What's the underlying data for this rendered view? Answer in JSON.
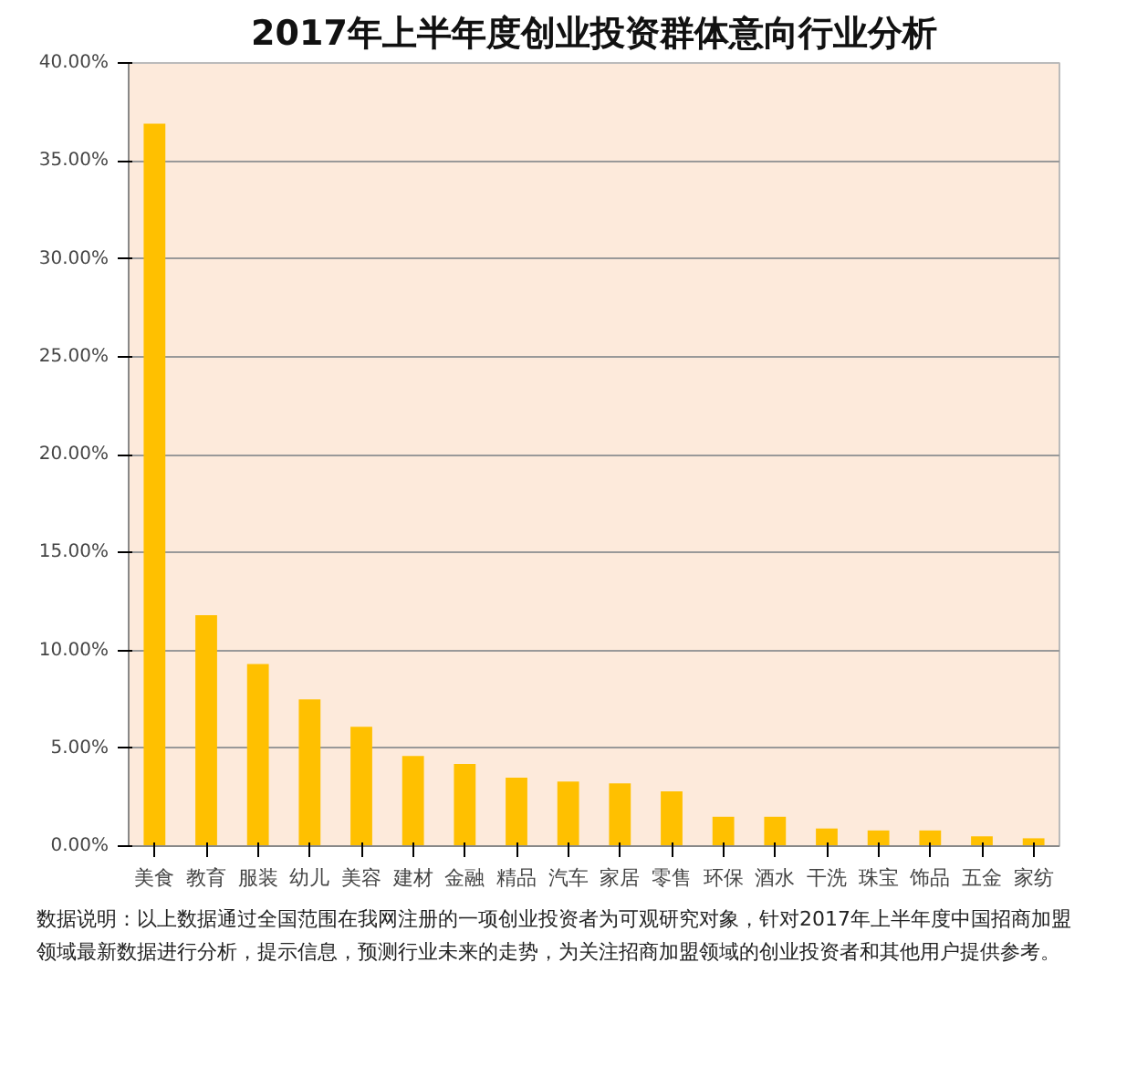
{
  "chart_data": {
    "type": "bar",
    "title": "2017年上半年度创业投资群体意向行业分析",
    "categories": [
      "美食",
      "教育",
      "服装",
      "幼儿",
      "美容",
      "建材",
      "金融",
      "精品",
      "汽车",
      "家居",
      "零售",
      "环保",
      "酒水",
      "干洗",
      "珠宝",
      "饰品",
      "五金",
      "家纺"
    ],
    "values": [
      36.9,
      11.8,
      9.3,
      7.5,
      6.1,
      4.6,
      4.2,
      3.5,
      3.3,
      3.2,
      2.8,
      1.5,
      1.5,
      0.9,
      0.8,
      0.8,
      0.5,
      0.4
    ],
    "color": "#ffc000",
    "ylim": [
      0,
      40
    ],
    "yticks": [
      {
        "value": 0,
        "label": "0.00%"
      },
      {
        "value": 5,
        "label": "5.00%"
      },
      {
        "value": 10,
        "label": "10.00%"
      },
      {
        "value": 15,
        "label": "15.00%"
      },
      {
        "value": 20,
        "label": "20.00%"
      },
      {
        "value": 25,
        "label": "25.00%"
      },
      {
        "value": 30,
        "label": "30.00%"
      },
      {
        "value": 35,
        "label": "35.00%"
      },
      {
        "value": 40,
        "label": "40.00%"
      }
    ],
    "grid": "y",
    "annotations": [
      "数据说明：以上数据通过全国范围在我网注册的一项创业投资者为可观研究对象，针对2017年上半年度中国招商加盟领域最新数据进行分析，提示信息，预测行业未来的走势，为关注招商加盟领域的创业投资者和其他用户提供参考。"
    ]
  }
}
